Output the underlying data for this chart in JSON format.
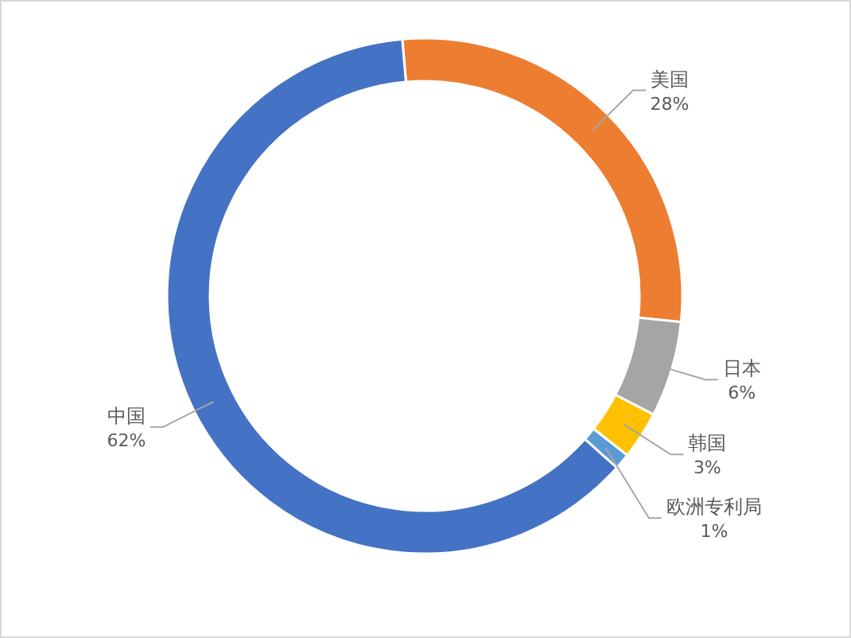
{
  "chart_data": {
    "type": "donut",
    "categories": [
      "美国",
      "日本",
      "韩国",
      "欧洲专利局",
      "中国"
    ],
    "values": [
      28,
      6,
      3,
      1,
      62
    ],
    "colors": [
      "#ed7d31",
      "#a5a5a5",
      "#ffc000",
      "#5b9bd5",
      "#4472c4"
    ],
    "value_labels": [
      "28%",
      "6%",
      "3%",
      "1%",
      "62%"
    ]
  }
}
